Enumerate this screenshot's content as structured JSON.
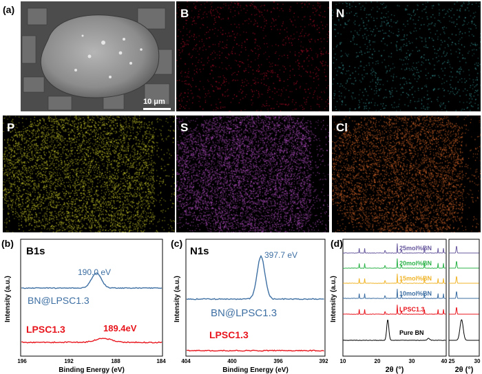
{
  "panel_a": {
    "label": "(a)",
    "scale_bar": "10 μm",
    "maps": [
      {
        "id": "B",
        "label": "B",
        "color": "#c8102e",
        "density": 0.12
      },
      {
        "id": "N",
        "label": "N",
        "color": "#3fa9a9",
        "density": 0.12
      },
      {
        "id": "P",
        "label": "P",
        "color": "#c9c92a",
        "density": 0.55
      },
      {
        "id": "S",
        "label": "S",
        "color": "#b04dc0",
        "density": 0.7
      },
      {
        "id": "Cl",
        "label": "Cl",
        "color": "#d9672a",
        "density": 0.55
      }
    ]
  },
  "panel_b": {
    "label": "(b)",
    "title": "B1s",
    "ylabel": "Intensity (a.u.)",
    "xlabel": "Binding Energy (eV)",
    "xticks": [
      "196",
      "192",
      "188",
      "184"
    ],
    "top_curve_label": "BN@LPSC1.3",
    "top_peak_label": "190.0 eV",
    "bottom_curve_label": "LPSC1.3",
    "bottom_peak_label": "189.4eV",
    "top_color": "#3d6fa3",
    "bottom_color": "#e8141c"
  },
  "panel_c": {
    "label": "(c)",
    "title": "N1s",
    "ylabel": "Intensity (a.u.)",
    "xlabel": "Binding Energy (eV)",
    "xticks": [
      "404",
      "400",
      "396",
      "392"
    ],
    "top_curve_label": "BN@LPSC1.3",
    "top_peak_label": "397.7 eV",
    "bottom_curve_label": "LPSC1.3",
    "top_color": "#3d6fa3",
    "bottom_color": "#e8141c"
  },
  "panel_d": {
    "label": "(d)",
    "ylabel": "Intensity (a.u.)",
    "xlabel": "2θ (°)",
    "xticks_main": [
      "10",
      "20",
      "30",
      "40"
    ],
    "xticks_zoom": [
      "25",
      "30"
    ],
    "series": [
      {
        "name": "25mol%BN",
        "color": "#6a5a9e"
      },
      {
        "name": "20mol%BN",
        "color": "#2db34a"
      },
      {
        "name": "15mol%BN",
        "color": "#f0b429"
      },
      {
        "name": "10mol%BN",
        "color": "#3d6fa3"
      },
      {
        "name": "LPSC1.3",
        "color": "#e8141c"
      },
      {
        "name": "Pure BN",
        "color": "#000000"
      }
    ]
  }
}
